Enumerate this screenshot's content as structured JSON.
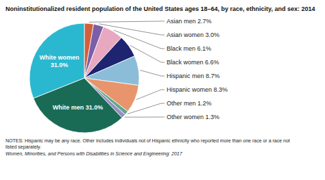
{
  "chart_data": {
    "type": "pie",
    "title": "Noninstitutionalized resident population of the United States ages 18–64, by race, ethnicity, and sex: 2014",
    "categories": [
      "Asian men 2.7%",
      "Asian women 3.0%",
      "Black men 6.1%",
      "Black women 6.6%",
      "Hispanic men 8.7%",
      "Hispanic women 8.3%",
      "Other men 1.2%",
      "Other women 1.3%",
      "White men 31.0%",
      "White women\n31.0%"
    ],
    "values": [
      2.7,
      3.0,
      6.1,
      6.6,
      8.7,
      8.3,
      1.2,
      1.3,
      31.0,
      31.0
    ],
    "colors": [
      "#d45f3c",
      "#7b5ea7",
      "#e8a8c0",
      "#1e2470",
      "#8bbdd9",
      "#e8956d",
      "#5aaa8c",
      "#9b8dc0",
      "#1a6b55",
      "#2ab8d0"
    ],
    "annotations": [
      "NOTES: Hispanic may be any race. Other includes individuals not of Hispanic ethnicity who reported more than one race or a race not\nlisted separately.",
      "Women, Minorities, and Persons with Disabilities in Science and Engineering: 2017"
    ]
  }
}
